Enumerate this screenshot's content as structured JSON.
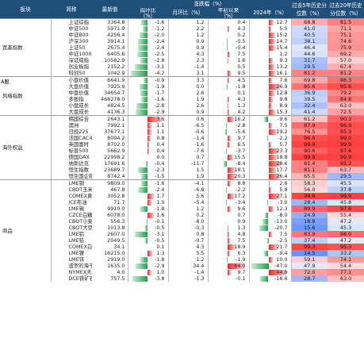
{
  "header": {
    "col_block": "板块",
    "col_name": "简称",
    "col_latest": "最新值",
    "group_change": "涨跌幅（%）",
    "col_week": "周环比\n（%）",
    "col_month": "月环比（%）",
    "col_ytd": "年初以来\n（%）",
    "col_2024": "2024年（%）",
    "col_p5": "过去5年历史分位数（%）",
    "col_p20": "过去20年历史分位数（%）"
  },
  "left_label": "A股",
  "groups": [
    {
      "name": "宽基指数",
      "rows": [
        {
          "name": "上证综指",
          "latest": "3364.8",
          "week": "-1.6",
          "month": "1.2",
          "ytd": "0.4",
          "y2024": "12.7",
          "p5": "68.8",
          "p20": "81.5"
        },
        {
          "name": "中证500",
          "latest": "5971.9",
          "week": "-1.2",
          "month": "2.2",
          "ytd": "4.3",
          "y2024": "5.5",
          "p5": "41.0",
          "p20": "71.1"
        },
        {
          "name": "中证800",
          "latest": "4256.4",
          "week": "-2.0",
          "month": "1.2",
          "ytd": "0.2",
          "y2024": "15.2",
          "p5": "40.5",
          "p20": "75.1"
        },
        {
          "name": "沪深300",
          "latest": "3914.1",
          "week": "-2.4",
          "month": "0.9",
          "ytd": "-0.5",
          "y2024": "14.7",
          "p5": "38.1",
          "p20": "74.6"
        },
        {
          "name": "上证50",
          "latest": "2675.4",
          "week": "-2.4",
          "month": "0.9",
          "ytd": "-0.4",
          "y2024": "15.4",
          "p5": "46.4",
          "p20": "75.9"
        },
        {
          "name": "中证1000",
          "latest": "6405.6",
          "week": "-2.5",
          "month": "4.3",
          "ytd": "7.5",
          "y2024": "1.2",
          "p5": "44.6",
          "p20": "69.2"
        },
        {
          "name": "深证成指",
          "latest": "10582.9",
          "week": "-1.8",
          "month": "2.3",
          "ytd": "1.6",
          "y2024": "9.3",
          "p5": "31.7",
          "p20": "57.0"
        },
        {
          "name": "创业板指",
          "latest": "2152.2",
          "week": "-3.1",
          "month": "-1.4",
          "ytd": "0.5",
          "y2024": "13.2",
          "p5": "29.5",
          "p20": "67.4"
        },
        {
          "name": "科创50",
          "latest": "1042.9",
          "week": "-4.2",
          "month": "3.1",
          "ytd": "9.5",
          "y2024": "16.1",
          "p5": "81.2",
          "p20": "81.2"
        }
      ]
    },
    {
      "name": "风格指数",
      "rows": [
        {
          "name": "小盘价值",
          "latest": "6641.9",
          "week": "-0.9",
          "month": "3.3",
          "ytd": "4.5",
          "y2024": "7.6",
          "p5": "69.8",
          "p20": "86.3"
        },
        {
          "name": "大盘价值",
          "latest": "7925.9",
          "week": "-1.9",
          "month": "0.0",
          "ytd": "-1.8",
          "y2024": "26.9",
          "p5": "85.6",
          "p20": "95.6"
        },
        {
          "name": "中盘价值",
          "latest": "34654.7",
          "week": "-1.7",
          "month": "2.6",
          "ytd": "0.1",
          "y2024": "12.8",
          "p5": "36.9",
          "p20": "79.2"
        },
        {
          "name": "多股指",
          "latest": "468278.0",
          "week": "-1.6",
          "month": "1.9",
          "ytd": "4.3",
          "y2024": "9.8",
          "p5": "39.5",
          "p20": "84.8"
        },
        {
          "name": "小盘成长",
          "latest": "4824.5",
          "week": "-2.8",
          "month": "2.6",
          "ytd": "1.3",
          "y2024": "8.9",
          "p5": "32.4",
          "p20": "63.0"
        },
        {
          "name": "大盘成长",
          "latest": "4136.3",
          "week": "-2.9",
          "month": "0.9",
          "ytd": "4.2",
          "y2024": "15.3",
          "p5": "41.4",
          "p20": "72.5"
        }
      ]
    },
    {
      "name": "海外权益",
      "rows": [
        {
          "name": "韩国综合",
          "latest": "2643.1",
          "week": "3.6",
          "month": "0.6",
          "ytd": "16.2",
          "y2024": "-9.6",
          "p5": "61.2",
          "p20": "90.3"
        },
        {
          "name": "澳洲",
          "latest": "7992.1",
          "week": "1.1",
          "month": "-6.5",
          "ytd": "-2.8",
          "y2024": "7.5",
          "p5": "87.9",
          "p20": "96.9"
        },
        {
          "name": "日经225",
          "latest": "37677.1",
          "week": "1.1",
          "month": "-0.6",
          "ytd": "-5.6",
          "y2024": "19.2",
          "p5": "76.5",
          "p20": "95.3"
        },
        {
          "name": "法国CAC40",
          "latest": "8094.2",
          "week": "0.8",
          "month": "-1.4",
          "ytd": "9.7",
          "y2024": "-2.2",
          "p5": "96.0",
          "p20": "99.0"
        },
        {
          "name": "英国富时",
          "latest": "8702.0",
          "week": "0.4",
          "month": "-1.6",
          "ytd": "6.5",
          "y2024": "5.7",
          "p5": "99.9",
          "p20": "99.9"
        },
        {
          "name": "标普500",
          "latest": "5662.9",
          "week": "0.4",
          "month": "-7.6",
          "ytd": "-3.7",
          "y2024": "23.3",
          "p5": "90.6",
          "p20": "97.6"
        },
        {
          "name": "德国DAX",
          "latest": "22998.2",
          "week": "0.0",
          "month": "0.7",
          "ytd": "15.5",
          "y2024": "18.8",
          "p5": "99.9",
          "p20": "99.9"
        },
        {
          "name": "纳斯达克",
          "latest": "17691.6",
          "week": "-0.4",
          "month": "-11.7",
          "ytd": "-8.4",
          "y2024": "28.6",
          "p5": "81.4",
          "p20": "95.2"
        },
        {
          "name": "恒生指数",
          "latest": "23689.7",
          "week": "-2.3",
          "month": "1.5",
          "ytd": "18.1",
          "y2024": "17.7",
          "p5": "81.1",
          "p20": "63.7"
        },
        {
          "name": "恒生国企指数",
          "latest": "8742.4",
          "week": "-1.5",
          "month": "1.9",
          "ytd": "20.3",
          "y2024": "26.4",
          "p5": "65.5",
          "p20": "29.5"
        }
      ]
    },
    {
      "name": "商品",
      "rows": [
        {
          "name": "LME铜",
          "latest": "9809.0",
          "week": "-1.6",
          "month": "-4.1",
          "ytd": "8.8",
          "y2024": "2.6",
          "p5": "58.3",
          "p20": "45.5"
        },
        {
          "name": "CBOT玉米",
          "latest": "467.8",
          "week": "-2.4",
          "month": "-6.8",
          "ytd": "-2.2",
          "y2024": "5.8",
          "p5": "56.0",
          "p20": "37.8"
        },
        {
          "name": "COMEX黄金",
          "latest": "3052.8",
          "week": "1.7",
          "month": "5.6",
          "ytd": "17.2",
          "y2024": "27.1",
          "p5": "99.8",
          "p20": "99.9"
        },
        {
          "name": "ICE布油",
          "latest": "71.7",
          "week": "1.0",
          "month": "-5.4",
          "ytd": "-3.4",
          "y2024": "-3.0",
          "p5": "28.4",
          "p20": "45.8"
        },
        {
          "name": "LME锡",
          "latest": "9910.0",
          "week": "-1.8",
          "month": "1.2",
          "ytd": "9.6",
          "y2024": "12.3",
          "p5": "89.9",
          "p20": "97.6"
        },
        {
          "name": "CZCE白糖",
          "latest": "6078.0",
          "week": "1.6",
          "month": "0.2",
          "ytd": "0.7",
          "y2024": "-8.0",
          "p5": "24.9",
          "p20": "55.4"
        },
        {
          "name": "CBOT小麦",
          "latest": "556.3",
          "week": "-0.1",
          "month": "-8.0",
          "ytd": "0.9",
          "y2024": "-13.0",
          "p5": "18.8",
          "p20": "47.2"
        },
        {
          "name": "CBOT大豆",
          "latest": "1013.8",
          "week": "-0.5",
          "month": "-0.3",
          "ytd": "1.3",
          "y2024": "-20.7",
          "p5": "15.6",
          "p20": "45.3"
        },
        {
          "name": "LME铝",
          "latest": "2607.0",
          "week": "-3.1",
          "month": "0.8",
          "ytd": "4.8",
          "y2024": "7.5",
          "p5": "83.9",
          "p20": "88.0"
        },
        {
          "name": "LME铅",
          "latest": "2049.5",
          "week": "-0.5",
          "month": "-0.7",
          "ytd": "7.5",
          "y2024": "-2.5",
          "p5": "37.4",
          "p20": "47.2"
        },
        {
          "name": "COMEX白银",
          "latest": "34.1",
          "week": "0.1",
          "month": "4.3",
          "ytd": "18.9",
          "y2024": "21.7",
          "p5": "99.3",
          "p20": "95.3"
        },
        {
          "name": "LME镍",
          "latest": "16215.0",
          "week": "1.3",
          "month": "5.5",
          "ytd": "6.3",
          "y2024": "-9.4",
          "p5": "14.5",
          "p20": "33.2"
        },
        {
          "name": "LME锌",
          "latest": "2919.0",
          "week": "-1.8",
          "month": "1.2",
          "ytd": "-1.9",
          "y2024": "10.0",
          "p5": "59.1",
          "p20": "74.1"
        },
        {
          "name": "波罗的海干散货指数",
          "latest": "1635.0",
          "week": "-2.9",
          "month": "34.4",
          "ytd": "64.0",
          "y2024": "-47.0",
          "p5": "47.9",
          "p20": "54.4"
        },
        {
          "name": "NYMEX天然气",
          "latest": "4.0",
          "week": "1.0",
          "month": "-1.4",
          "ytd": "9.7",
          "y2024": "44.8",
          "p5": "72.0",
          "p20": "77.1"
        },
        {
          "name": "DCE铁矿石",
          "latest": "757.5",
          "week": "-3.8",
          "month": "-1.3",
          "ytd": "-0.1",
          "y2024": "-18.6",
          "p5": "28.7",
          "p20": "63.0"
        }
      ]
    }
  ],
  "colors": {
    "header": "#1f4e79",
    "pos": "#e8282a",
    "neg": "#1fa04a",
    "hi": "#e8282a",
    "lo": "#2f6fc9"
  }
}
